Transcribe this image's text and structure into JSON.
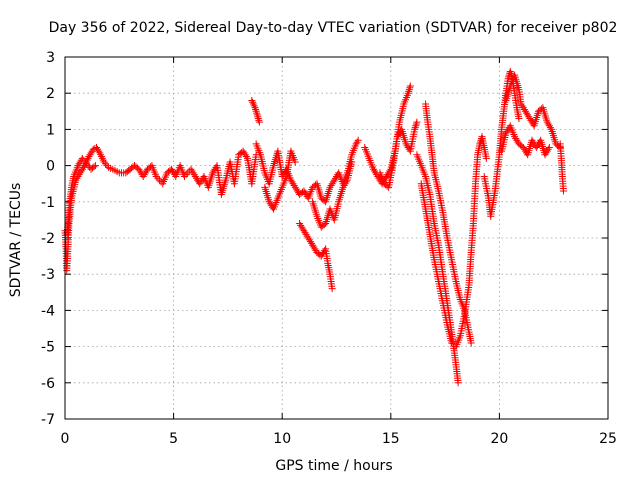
{
  "chart_data": {
    "type": "scatter",
    "title": "Day 356 of 2022, Sidereal Day-to-day VTEC variation (SDTVAR) for receiver p802",
    "xlabel": "GPS time / hours",
    "ylabel": "SDTVAR / TECUs",
    "xlim": [
      0,
      25
    ],
    "ylim": [
      -7,
      3
    ],
    "xticks": [
      "0",
      "5",
      "10",
      "15",
      "20",
      "25"
    ],
    "yticks": [
      "-7",
      "-6",
      "-5",
      "-4",
      "-3",
      "-2",
      "-1",
      "0",
      "1",
      "2",
      "3"
    ],
    "grid": true,
    "marker": "+",
    "color": "#ff0000",
    "series": [
      {
        "name": "p802",
        "segments": [
          [
            [
              0.0,
              -1.8
            ],
            [
              0.05,
              -2.3
            ],
            [
              0.08,
              -2.9
            ],
            [
              0.12,
              -2.5
            ],
            [
              0.18,
              -1.6
            ],
            [
              0.3,
              -0.9
            ],
            [
              0.5,
              -0.4
            ],
            [
              0.7,
              -0.2
            ],
            [
              0.9,
              0.0
            ],
            [
              1.1,
              0.25
            ],
            [
              1.3,
              0.45
            ],
            [
              1.45,
              0.5
            ],
            [
              1.6,
              0.35
            ],
            [
              1.8,
              0.1
            ],
            [
              2.0,
              -0.05
            ],
            [
              2.2,
              -0.1
            ],
            [
              2.5,
              -0.2
            ],
            [
              2.8,
              -0.2
            ],
            [
              3.0,
              -0.1
            ],
            [
              3.2,
              0.0
            ],
            [
              3.4,
              -0.1
            ],
            [
              3.6,
              -0.3
            ],
            [
              3.8,
              -0.1
            ],
            [
              4.0,
              0.0
            ],
            [
              4.2,
              -0.3
            ],
            [
              4.5,
              -0.5
            ],
            [
              4.7,
              -0.2
            ],
            [
              4.9,
              -0.1
            ],
            [
              5.1,
              -0.3
            ],
            [
              5.3,
              0.0
            ],
            [
              5.5,
              -0.3
            ],
            [
              5.8,
              -0.1
            ],
            [
              6.0,
              -0.3
            ],
            [
              6.2,
              -0.5
            ],
            [
              6.4,
              -0.3
            ],
            [
              6.6,
              -0.6
            ],
            [
              6.8,
              -0.2
            ],
            [
              7.0,
              0.0
            ],
            [
              7.2,
              -0.8
            ],
            [
              7.4,
              -0.4
            ],
            [
              7.6,
              0.1
            ],
            [
              7.8,
              -0.5
            ],
            [
              8.0,
              0.3
            ],
            [
              8.2,
              0.4
            ],
            [
              8.4,
              0.2
            ],
            [
              8.6,
              -0.5
            ],
            [
              8.8,
              0.3
            ]
          ],
          [
            [
              0.1,
              -1.9
            ],
            [
              0.2,
              -1.1
            ],
            [
              0.3,
              -0.6
            ],
            [
              0.4,
              -0.3
            ],
            [
              0.6,
              0.0
            ],
            [
              0.8,
              0.2
            ],
            [
              1.0,
              0.05
            ],
            [
              1.2,
              -0.1
            ],
            [
              1.4,
              0.0
            ]
          ],
          [
            [
              8.6,
              1.8
            ],
            [
              8.75,
              1.6
            ],
            [
              8.85,
              1.4
            ],
            [
              8.95,
              1.2
            ]
          ],
          [
            [
              8.8,
              0.6
            ],
            [
              9.0,
              0.3
            ],
            [
              9.2,
              -0.2
            ],
            [
              9.4,
              -0.5
            ],
            [
              9.6,
              0.0
            ],
            [
              9.8,
              0.4
            ],
            [
              10.0,
              -0.3
            ],
            [
              10.2,
              -0.1
            ],
            [
              10.4,
              -0.4
            ],
            [
              10.6,
              -0.6
            ],
            [
              10.8,
              -0.8
            ],
            [
              11.0,
              -0.7
            ],
            [
              11.2,
              -0.9
            ],
            [
              11.4,
              -0.6
            ],
            [
              11.6,
              -0.5
            ],
            [
              11.8,
              -0.9
            ],
            [
              12.0,
              -1.0
            ],
            [
              12.2,
              -0.6
            ],
            [
              12.4,
              -0.4
            ],
            [
              12.6,
              -0.2
            ],
            [
              12.8,
              -0.5
            ],
            [
              13.0,
              -0.2
            ],
            [
              13.2,
              0.3
            ],
            [
              13.4,
              0.6
            ],
            [
              13.5,
              0.7
            ]
          ],
          [
            [
              9.2,
              -0.6
            ],
            [
              9.4,
              -1.0
            ],
            [
              9.6,
              -1.2
            ],
            [
              9.8,
              -0.9
            ],
            [
              10.0,
              -0.6
            ],
            [
              10.2,
              -0.3
            ],
            [
              10.4,
              0.4
            ],
            [
              10.6,
              0.1
            ]
          ],
          [
            [
              10.8,
              -1.6
            ],
            [
              11.0,
              -1.8
            ],
            [
              11.2,
              -2.0
            ],
            [
              11.4,
              -2.2
            ],
            [
              11.6,
              -2.4
            ],
            [
              11.8,
              -2.5
            ],
            [
              12.0,
              -2.3
            ],
            [
              12.1,
              -2.7
            ],
            [
              12.2,
              -3.0
            ],
            [
              12.3,
              -3.4
            ]
          ],
          [
            [
              11.4,
              -1.0
            ],
            [
              11.6,
              -1.4
            ],
            [
              11.8,
              -1.7
            ],
            [
              12.0,
              -1.6
            ],
            [
              12.2,
              -1.2
            ],
            [
              12.4,
              -1.5
            ],
            [
              12.6,
              -1.0
            ],
            [
              12.8,
              -0.6
            ],
            [
              13.0,
              -0.4
            ],
            [
              13.2,
              0.1
            ]
          ],
          [
            [
              13.8,
              0.5
            ],
            [
              14.0,
              0.2
            ],
            [
              14.2,
              -0.1
            ],
            [
              14.4,
              -0.3
            ],
            [
              14.6,
              -0.5
            ],
            [
              14.8,
              -0.3
            ],
            [
              15.0,
              -0.1
            ],
            [
              15.2,
              0.4
            ],
            [
              15.4,
              1.2
            ],
            [
              15.6,
              1.7
            ],
            [
              15.8,
              2.0
            ],
            [
              15.9,
              2.2
            ]
          ],
          [
            [
              14.5,
              -0.2
            ],
            [
              14.7,
              -0.5
            ],
            [
              14.9,
              -0.6
            ],
            [
              15.1,
              0.0
            ],
            [
              15.3,
              0.8
            ],
            [
              15.5,
              1.0
            ],
            [
              15.7,
              0.6
            ],
            [
              15.9,
              0.4
            ],
            [
              16.1,
              1.0
            ],
            [
              16.2,
              1.2
            ]
          ],
          [
            [
              16.2,
              0.3
            ],
            [
              16.4,
              0.0
            ],
            [
              16.6,
              -0.3
            ],
            [
              16.8,
              -0.8
            ],
            [
              17.0,
              -1.6
            ],
            [
              17.2,
              -2.2
            ],
            [
              17.4,
              -3.0
            ],
            [
              17.6,
              -3.8
            ],
            [
              17.8,
              -4.6
            ],
            [
              18.0,
              -5.5
            ],
            [
              18.1,
              -6.0
            ]
          ],
          [
            [
              16.4,
              -0.5
            ],
            [
              16.6,
              -1.2
            ],
            [
              16.8,
              -1.9
            ],
            [
              17.0,
              -2.6
            ],
            [
              17.2,
              -3.2
            ],
            [
              17.4,
              -3.8
            ],
            [
              17.6,
              -4.4
            ],
            [
              17.8,
              -4.9
            ]
          ],
          [
            [
              16.6,
              1.7
            ],
            [
              16.7,
              1.2
            ],
            [
              16.8,
              0.8
            ],
            [
              16.9,
              0.3
            ],
            [
              17.0,
              -0.2
            ],
            [
              17.2,
              -0.7
            ],
            [
              17.4,
              -1.3
            ],
            [
              17.6,
              -2.0
            ],
            [
              17.8,
              -2.6
            ],
            [
              18.0,
              -3.2
            ],
            [
              18.2,
              -3.7
            ],
            [
              18.4,
              -4.0
            ],
            [
              18.6,
              -4.6
            ],
            [
              18.7,
              -4.9
            ]
          ],
          [
            [
              18.0,
              -5.0
            ],
            [
              18.2,
              -4.7
            ],
            [
              18.4,
              -4.1
            ],
            [
              18.6,
              -3.3
            ],
            [
              18.7,
              -2.4
            ],
            [
              18.8,
              -1.6
            ],
            [
              18.9,
              -0.5
            ],
            [
              19.0,
              0.3
            ],
            [
              19.1,
              0.6
            ],
            [
              19.2,
              0.8
            ],
            [
              19.3,
              0.5
            ],
            [
              19.4,
              0.2
            ]
          ],
          [
            [
              19.3,
              -0.3
            ],
            [
              19.5,
              -0.9
            ],
            [
              19.6,
              -1.4
            ],
            [
              19.8,
              -0.7
            ],
            [
              20.0,
              0.3
            ],
            [
              20.1,
              1.0
            ],
            [
              20.2,
              1.5
            ],
            [
              20.3,
              2.0
            ],
            [
              20.4,
              2.4
            ],
            [
              20.5,
              2.6
            ],
            [
              20.6,
              2.4
            ],
            [
              20.7,
              2.0
            ],
            [
              20.8,
              1.6
            ],
            [
              20.9,
              1.3
            ]
          ],
          [
            [
              20.3,
              1.8
            ],
            [
              20.5,
              2.2
            ],
            [
              20.7,
              2.5
            ],
            [
              20.9,
              2.1
            ],
            [
              21.0,
              1.7
            ],
            [
              21.2,
              1.5
            ],
            [
              21.4,
              1.3
            ],
            [
              21.6,
              1.1
            ],
            [
              21.8,
              1.5
            ],
            [
              22.0,
              1.6
            ],
            [
              22.2,
              1.2
            ],
            [
              22.4,
              1.0
            ],
            [
              22.6,
              0.6
            ],
            [
              22.8,
              0.5
            ]
          ],
          [
            [
              20.1,
              0.4
            ],
            [
              20.3,
              0.9
            ],
            [
              20.5,
              1.1
            ],
            [
              20.7,
              0.8
            ],
            [
              20.9,
              0.6
            ],
            [
              21.1,
              0.5
            ],
            [
              21.3,
              0.3
            ],
            [
              21.5,
              0.7
            ],
            [
              21.7,
              0.5
            ],
            [
              21.9,
              0.7
            ],
            [
              22.1,
              0.3
            ],
            [
              22.3,
              0.5
            ]
          ],
          [
            [
              22.8,
              0.6
            ],
            [
              22.85,
              0.2
            ],
            [
              22.9,
              -0.3
            ],
            [
              22.95,
              -0.7
            ]
          ]
        ]
      }
    ]
  }
}
